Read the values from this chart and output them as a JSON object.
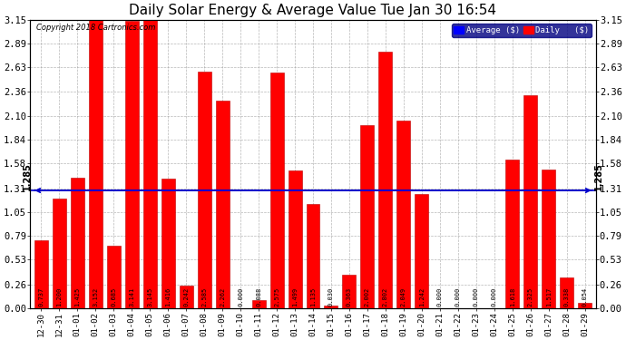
{
  "title": "Daily Solar Energy & Average Value Tue Jan 30 16:54",
  "copyright": "Copyright 2018 Cartronics.com",
  "categories": [
    "12-30",
    "12-31",
    "01-01",
    "01-02",
    "01-03",
    "01-04",
    "01-05",
    "01-06",
    "01-07",
    "01-08",
    "01-09",
    "01-10",
    "01-11",
    "01-12",
    "01-13",
    "01-14",
    "01-15",
    "01-16",
    "01-17",
    "01-18",
    "01-19",
    "01-20",
    "01-21",
    "01-22",
    "01-23",
    "01-24",
    "01-25",
    "01-26",
    "01-27",
    "01-28",
    "01-29"
  ],
  "values": [
    0.737,
    1.2,
    1.425,
    3.152,
    0.685,
    3.141,
    3.145,
    1.416,
    0.242,
    2.585,
    2.262,
    0.0,
    0.088,
    2.575,
    1.499,
    1.135,
    0.03,
    0.363,
    2.002,
    2.802,
    2.049,
    1.242,
    0.0,
    0.0,
    0.0,
    0.0,
    1.618,
    2.325,
    1.517,
    0.338,
    0.054
  ],
  "average_value": 1.285,
  "bar_color": "#FF0000",
  "average_line_color": "#0000CC",
  "background_color": "#FFFFFF",
  "plot_bg_color": "#FFFFFF",
  "grid_color": "#999999",
  "ylim": [
    0.0,
    3.15
  ],
  "yticks": [
    0.0,
    0.26,
    0.53,
    0.79,
    1.05,
    1.31,
    1.58,
    1.84,
    2.1,
    2.36,
    2.63,
    2.89,
    3.15
  ],
  "title_fontsize": 11,
  "bar_edge_color": "#BB0000",
  "legend_bg_color": "#000080",
  "legend_avg_color": "#0000FF",
  "legend_daily_color": "#FF0000"
}
